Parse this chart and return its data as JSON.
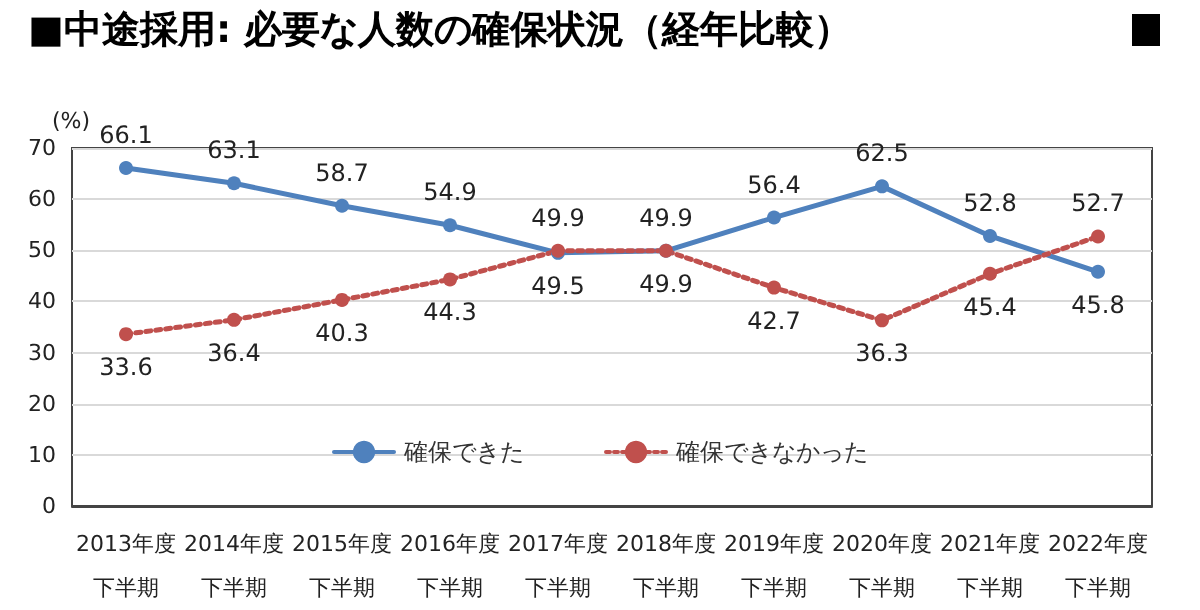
{
  "chart_data": {
    "type": "line",
    "title": "■中途採用: 必要な人数の確保状況（経年比較）",
    "ylabel": "(%)",
    "categories": [
      "2013年度下半期",
      "2014年度下半期",
      "2015年度下半期",
      "2016年度下半期",
      "2017年度下半期",
      "2018年度下半期",
      "2019年度下半期",
      "2020年度下半期",
      "2021年度下半期",
      "2022年度下半期"
    ],
    "series": [
      {
        "name": "確保できた",
        "color": "#4f81bd",
        "line_style": "solid",
        "values": [
          66.1,
          63.1,
          58.7,
          54.9,
          49.5,
          49.9,
          56.4,
          62.5,
          52.8,
          45.8
        ]
      },
      {
        "name": "確保できなかった",
        "color": "#c0504d",
        "line_style": "dotted",
        "values": [
          33.6,
          36.4,
          40.3,
          44.3,
          49.9,
          49.9,
          42.7,
          36.3,
          45.4,
          52.7
        ]
      }
    ],
    "ylim": [
      0,
      70
    ],
    "yticks": [
      0,
      10,
      20,
      30,
      40,
      50,
      60,
      70
    ],
    "grid": "y",
    "legend": "center",
    "marker": "circle",
    "data_labels": true
  }
}
